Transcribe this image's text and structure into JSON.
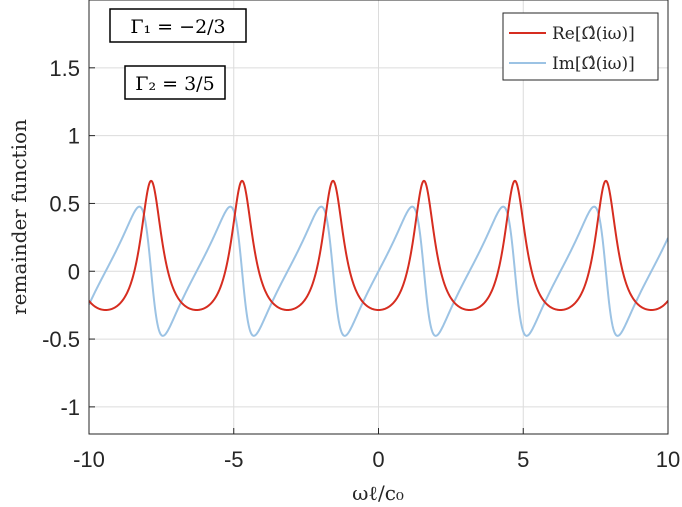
{
  "chart_data": {
    "type": "line",
    "xlabel": "ωℓ/c₀",
    "ylabel": "remainder function",
    "xlim": [
      -10,
      10
    ],
    "ylim": [
      -1.2,
      2.0
    ],
    "x_ticks": [
      "-10",
      "-5",
      "0",
      "5",
      "10"
    ],
    "x_tick_values": [
      -10,
      -5,
      0,
      5,
      10
    ],
    "y_ticks": [
      "-1",
      "-0.5",
      "0",
      "0.5",
      "1",
      "1.5"
    ],
    "y_tick_values": [
      -1,
      -0.5,
      0,
      0.5,
      1,
      1.5
    ],
    "grid": true,
    "legend_position": "top-right",
    "legend": [
      "Re[Ω̂(iω)]",
      "Im[Ω̂(iω)]"
    ],
    "annotations": [
      "Γ₁ = −2/3",
      "Γ₂ = 3/5"
    ],
    "gamma1": -0.6667,
    "gamma2": 0.6,
    "series": [
      {
        "name": "Re[Ω̂(iω)]",
        "color": "#d62d20",
        "part": "real"
      },
      {
        "name": "Im[Ω̂(iω)]",
        "color": "#9cc3e4",
        "part": "imag"
      }
    ]
  }
}
